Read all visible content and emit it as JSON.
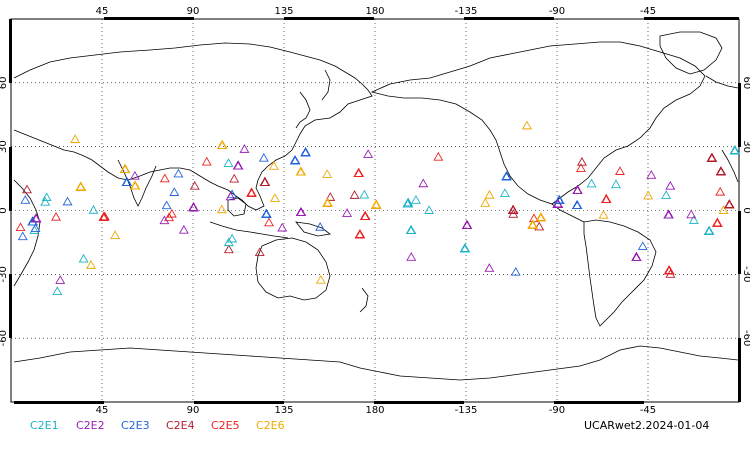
{
  "map": {
    "projection": "equirectangular, centered on 180",
    "lon_center": 180,
    "grid": true,
    "top_lon_labels": [
      "45",
      "90",
      "135",
      "180",
      "-135",
      "-90",
      "-45"
    ],
    "bottom_lon_labels": [
      "45",
      "90",
      "135",
      "180",
      "-135",
      "-90",
      "-45"
    ],
    "lat_labels": [
      "60",
      "30",
      "0",
      "-30",
      "-60"
    ]
  },
  "legend": [
    {
      "label": "C2E1",
      "color": "#1fb3c8"
    },
    {
      "label": "C2E2",
      "color": "#9a1fb5"
    },
    {
      "label": "C2E3",
      "color": "#2266dd"
    },
    {
      "label": "C2E4",
      "color": "#b51f2f"
    },
    {
      "label": "C2E5",
      "color": "#ee2222"
    },
    {
      "label": "C2E6",
      "color": "#f0a800"
    }
  ],
  "product_label": "UCARwet2.2024-01-04",
  "observations": {
    "symbol": "open-triangle",
    "lat_range": [
      -45,
      45
    ],
    "coverage": "global longitude band"
  }
}
